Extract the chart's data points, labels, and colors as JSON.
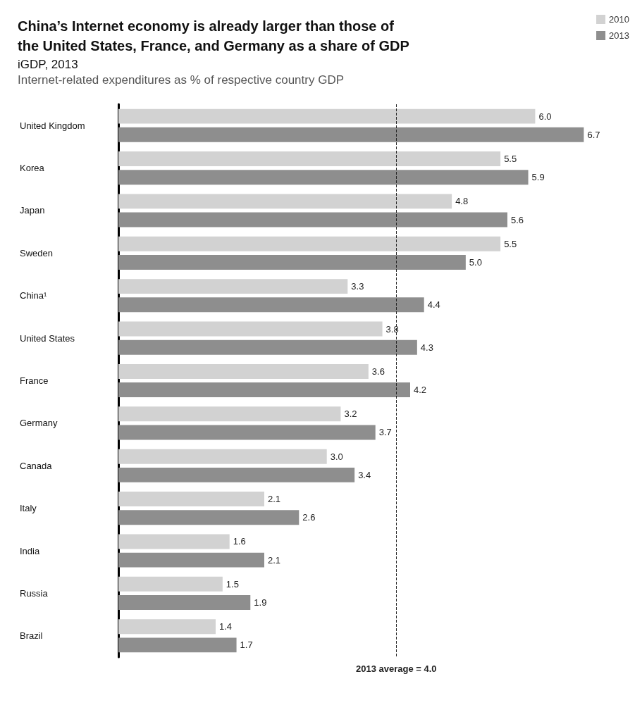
{
  "chart_data": {
    "type": "bar",
    "orientation": "horizontal",
    "title": "China’s Internet economy is already larger than those of\nthe United States, France, and Germany as a share of GDP",
    "subtitle": "iGDP, 2013",
    "xlabel": "Internet-related expenditures as % of respective country GDP",
    "categories": [
      "United Kingdom",
      "Korea",
      "Japan",
      "Sweden",
      "China¹",
      "United States",
      "France",
      "Germany",
      "Canada",
      "Italy",
      "India",
      "Russia",
      "Brazil"
    ],
    "series": [
      {
        "name": "2010",
        "color": "#d2d2d2",
        "values": [
          6.0,
          5.5,
          4.8,
          5.5,
          3.3,
          3.8,
          3.6,
          3.2,
          3.0,
          2.1,
          1.6,
          1.5,
          1.4
        ],
        "value_labels": [
          "6.0",
          "5.5",
          "4.8",
          "5.5",
          "3.3",
          "3.8",
          "3.6",
          "3.2",
          "3.0",
          "2.1",
          "1.6",
          "1.5",
          "1.4"
        ]
      },
      {
        "name": "2013",
        "color": "#8e8e8e",
        "values": [
          6.7,
          5.9,
          5.6,
          5.0,
          4.4,
          4.3,
          4.2,
          3.7,
          3.4,
          2.6,
          2.1,
          1.9,
          1.7
        ],
        "value_labels": [
          "6.7",
          "5.9",
          "5.6",
          "5.0",
          "4.4",
          "4.3",
          "4.2",
          "3.7",
          "3.4",
          "2.6",
          "2.1",
          "1.9",
          "1.7"
        ]
      }
    ],
    "ref_lines": [
      {
        "axis": "x",
        "value": 4.0,
        "label": "2013 average = 4.0",
        "line_style": "dashed",
        "color": "#222222"
      }
    ],
    "legend": "top right",
    "grid": false
  }
}
